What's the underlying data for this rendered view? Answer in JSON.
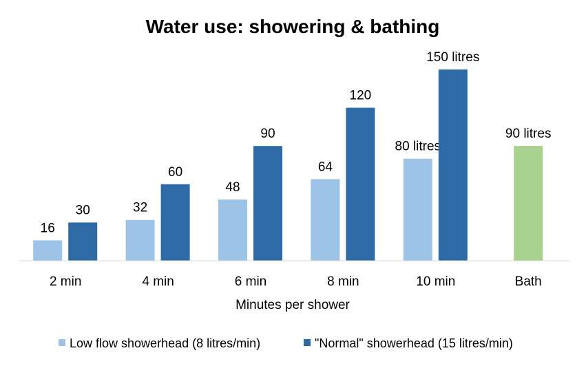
{
  "chart_data": {
    "type": "bar",
    "title": "Water use: showering & bathing",
    "xlabel": "Minutes per shower",
    "ylabel": "",
    "categories": [
      "2 min",
      "4 min",
      "6 min",
      "8 min",
      "10 min",
      "Bath"
    ],
    "series": [
      {
        "name": "Low flow showerhead (8 litres/min)",
        "color": "#9DC3E6",
        "values": [
          16,
          32,
          48,
          64,
          80,
          null
        ],
        "labels": [
          "16",
          "32",
          "48",
          "64",
          "80 litres",
          ""
        ]
      },
      {
        "name": "\"Normal\" showerhead (15 litres/min)",
        "color": "#2E6AA5",
        "values": [
          30,
          60,
          90,
          120,
          150,
          null
        ],
        "labels": [
          "30",
          "60",
          "90",
          "120",
          "150 litres",
          ""
        ]
      },
      {
        "name": "Bath",
        "color": "#A9D18E",
        "values": [
          null,
          null,
          null,
          null,
          null,
          90
        ],
        "labels": [
          "",
          "",
          "",
          "",
          "",
          "90 litres"
        ],
        "show_in_legend": false
      }
    ],
    "ylim": [
      0,
      150
    ],
    "grid": false,
    "legend_position": "bottom"
  }
}
